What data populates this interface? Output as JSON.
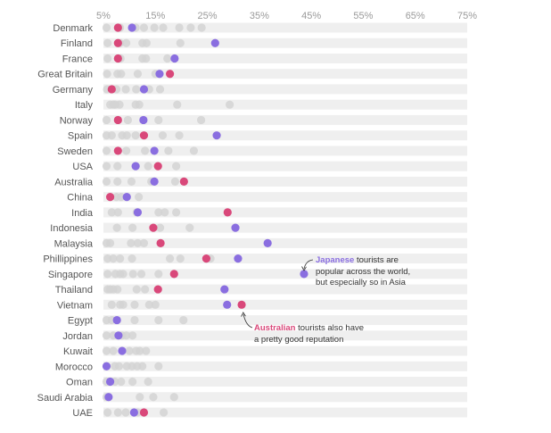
{
  "chart_data": {
    "type": "scatter",
    "title": "",
    "xlabel": "",
    "ylabel": "",
    "xlim": [
      5,
      75
    ],
    "x_ticks": [
      "5%",
      "15%",
      "25%",
      "35%",
      "45%",
      "55%",
      "65%",
      "75%"
    ],
    "x_tick_values": [
      5,
      15,
      25,
      35,
      45,
      55,
      65,
      75
    ],
    "grid": false,
    "colors": {
      "japanese": "#8a6ee0",
      "australian": "#d9487a",
      "other": "#d4d4d4",
      "band": "#efefef"
    },
    "countries": [
      {
        "name": "Denmark",
        "japanese": 10.5,
        "australian": 7.8,
        "others": [
          5.6,
          8.2,
          11.2,
          12.8,
          14.8,
          16.5,
          19.6,
          21.8,
          23.9
        ]
      },
      {
        "name": "Finland",
        "japanese": 26.5,
        "australian": 7.8,
        "others": [
          5.8,
          8.2,
          9.4,
          12.5,
          13.3,
          19.8
        ]
      },
      {
        "name": "France",
        "japanese": 18.7,
        "australian": 7.8,
        "others": [
          5.8,
          8.3,
          12.5,
          13.2,
          17.3
        ]
      },
      {
        "name": "Great Britain",
        "japanese": 15.8,
        "australian": 17.8,
        "others": [
          5.7,
          7.7,
          8.4,
          11.6,
          15.0
        ]
      },
      {
        "name": "Germany",
        "japanese": 12.8,
        "australian": 6.6,
        "others": [
          5.7,
          7.5,
          9.3,
          11.3,
          13.8,
          15.9
        ]
      },
      {
        "name": "Italy",
        "japanese": null,
        "australian": null,
        "others": [
          6.3,
          6.9,
          7.3,
          8.1,
          11.2,
          11.9,
          19.2,
          29.3
        ]
      },
      {
        "name": "Norway",
        "japanese": 12.7,
        "australian": 7.8,
        "others": [
          5.6,
          9.7,
          15.6,
          23.8
        ]
      },
      {
        "name": "Spain",
        "japanese": 26.8,
        "australian": 12.8,
        "others": [
          5.6,
          6.6,
          8.6,
          9.5,
          11.2,
          16.4,
          19.6
        ]
      },
      {
        "name": "Sweden",
        "japanese": 14.8,
        "australian": 7.8,
        "others": [
          5.6,
          9.4,
          13.0,
          17.5,
          22.4
        ]
      },
      {
        "name": "USA",
        "japanese": 11.2,
        "australian": 15.5,
        "others": [
          5.6,
          7.7,
          13.6,
          19.0
        ]
      },
      {
        "name": "Australia",
        "japanese": 14.8,
        "australian": 20.5,
        "others": [
          5.6,
          7.7,
          10.4,
          14.2,
          18.8
        ]
      },
      {
        "name": "China",
        "japanese": 9.5,
        "australian": 6.3,
        "others": [
          7.5,
          8.4,
          11.8
        ]
      },
      {
        "name": "India",
        "japanese": 11.6,
        "australian": 28.9,
        "others": [
          6.6,
          7.8,
          11.4,
          15.6,
          16.8,
          19.0
        ]
      },
      {
        "name": "Indonesia",
        "japanese": 30.4,
        "australian": 14.6,
        "others": [
          7.6,
          10.6,
          15.9,
          21.6
        ]
      },
      {
        "name": "Malaysia",
        "japanese": 36.6,
        "australian": 16.0,
        "others": [
          5.6,
          6.3,
          10.3,
          11.6,
          12.8
        ]
      },
      {
        "name": "Phillippines",
        "japanese": 30.9,
        "australian": 24.8,
        "others": [
          5.8,
          6.9,
          8.2,
          10.5,
          17.8,
          19.8,
          25.6
        ]
      },
      {
        "name": "Singapore",
        "japanese": 43.6,
        "australian": 18.6,
        "others": [
          5.8,
          7.3,
          8.2,
          8.8,
          10.7,
          12.3,
          15.6
        ]
      },
      {
        "name": "Thailand",
        "japanese": 28.3,
        "australian": 15.5,
        "others": [
          5.8,
          6.3,
          6.9,
          7.7,
          11.4,
          13.0
        ]
      },
      {
        "name": "Vietnam",
        "japanese": 28.8,
        "australian": 31.6,
        "others": [
          6.6,
          8.2,
          8.8,
          11.0,
          13.8,
          15.0
        ]
      },
      {
        "name": "Egypt",
        "japanese": 7.6,
        "australian": null,
        "others": [
          5.6,
          6.6,
          11.0,
          15.6,
          20.4
        ]
      },
      {
        "name": "Jordan",
        "japanese": 7.9,
        "australian": null,
        "others": [
          5.6,
          6.9,
          8.6,
          9.4,
          10.6
        ]
      },
      {
        "name": "Kuwait",
        "japanese": 8.6,
        "australian": null,
        "others": [
          5.6,
          6.9,
          10.0,
          11.3,
          12.0,
          13.2
        ]
      },
      {
        "name": "Morocco",
        "japanese": 5.6,
        "australian": null,
        "others": [
          7.2,
          8.0,
          9.5,
          10.5,
          11.5,
          12.5,
          15.6
        ]
      },
      {
        "name": "Oman",
        "japanese": 6.3,
        "australian": null,
        "others": [
          5.6,
          7.2,
          8.4,
          10.6,
          13.6
        ]
      },
      {
        "name": "Saudi Arabia",
        "japanese": 6.0,
        "australian": null,
        "others": [
          5.6,
          12.0,
          14.6,
          18.6
        ]
      },
      {
        "name": "UAE",
        "japanese": 10.9,
        "australian": 12.8,
        "others": [
          5.8,
          7.8,
          9.3,
          11.6,
          16.6
        ]
      }
    ],
    "annotations": {
      "japanese": {
        "highlight": "Japanese",
        "rest": " tourists are",
        "line2": "popular across the world,",
        "line3": "but especially so in Asia"
      },
      "australian": {
        "highlight": "Australian",
        "rest": " tourists also have",
        "line2": "a pretty good reputation"
      }
    }
  }
}
